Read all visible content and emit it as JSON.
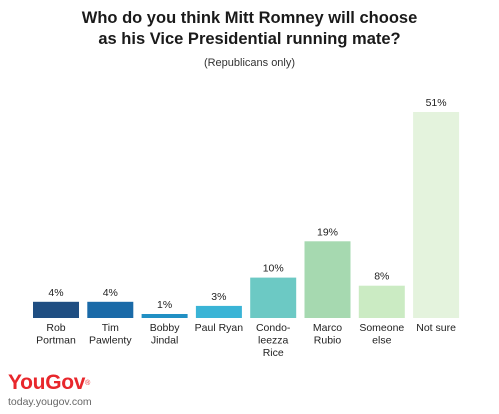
{
  "title_line1": "Who do you think Mitt Romney will choose",
  "title_line2": "as his Vice Presidential running mate?",
  "subtitle": "(Republicans only)",
  "chart_data": {
    "type": "bar",
    "categories": [
      [
        "Rob",
        "Portman"
      ],
      [
        "Tim",
        "Pawlenty"
      ],
      [
        "Bobby",
        "Jindal"
      ],
      [
        "Paul Ryan"
      ],
      [
        "Condo-",
        "leezza",
        "Rice"
      ],
      [
        "Marco",
        "Rubio"
      ],
      [
        "Someone",
        "else"
      ],
      [
        "Not sure"
      ]
    ],
    "values": [
      4,
      4,
      1,
      3,
      10,
      19,
      8,
      51
    ],
    "value_labels": [
      "4%",
      "4%",
      "1%",
      "3%",
      "10%",
      "19%",
      "8%",
      "51%"
    ],
    "colors": [
      "#1f4e82",
      "#1a6aa8",
      "#2190c4",
      "#3ab4d6",
      "#6cc9c4",
      "#a6d9b0",
      "#cbebc3",
      "#e4f3dd"
    ],
    "ylim": [
      0,
      51
    ],
    "grid": false,
    "legend": "none"
  },
  "branding": {
    "logo_text": "YouGov",
    "logo_mark": "®",
    "url": "today.yougov.com",
    "color": "#e8272c"
  }
}
